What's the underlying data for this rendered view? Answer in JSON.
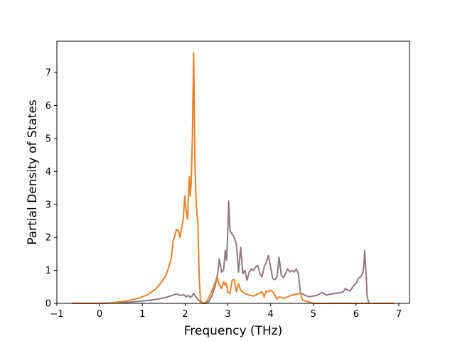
{
  "chart_data": {
    "type": "line",
    "title": "",
    "xlabel": "Frequency (THz)",
    "ylabel": "Partial Density of States",
    "xlim": [
      -1.0,
      7.25
    ],
    "ylim": [
      0,
      7.95
    ],
    "xticks": [
      -1,
      0,
      1,
      2,
      3,
      4,
      5,
      6,
      7
    ],
    "yticks": [
      0,
      1,
      2,
      3,
      4,
      5,
      6,
      7
    ],
    "grid": false,
    "legend": "none",
    "series": [
      {
        "color": "#8c7b7f",
        "x": [
          -0.65,
          0.0,
          0.5,
          0.8,
          1.0,
          1.2,
          1.4,
          1.55,
          1.65,
          1.75,
          1.82,
          1.9,
          1.97,
          2.02,
          2.08,
          2.12,
          2.16,
          2.2,
          2.25,
          2.3,
          2.36,
          2.42,
          2.48,
          2.55,
          2.62,
          2.7,
          2.76,
          2.8,
          2.85,
          2.9,
          2.94,
          2.97,
          3.0,
          3.02,
          3.05,
          3.1,
          3.15,
          3.2,
          3.25,
          3.3,
          3.35,
          3.4,
          3.45,
          3.5,
          3.55,
          3.6,
          3.65,
          3.7,
          3.75,
          3.8,
          3.85,
          3.9,
          3.95,
          4.0,
          4.05,
          4.1,
          4.15,
          4.2,
          4.25,
          4.3,
          4.35,
          4.4,
          4.45,
          4.5,
          4.55,
          4.6,
          4.65,
          4.7,
          4.75,
          4.8,
          4.9,
          5.0,
          5.1,
          5.2,
          5.3,
          5.4,
          5.5,
          5.6,
          5.7,
          5.75,
          5.8,
          5.85,
          5.9,
          5.95,
          6.0,
          6.05,
          6.1,
          6.15,
          6.18,
          6.2,
          6.23,
          6.26,
          6.3,
          6.9
        ],
        "values": [
          0,
          0,
          0.02,
          0.05,
          0.07,
          0.1,
          0.14,
          0.18,
          0.22,
          0.27,
          0.28,
          0.24,
          0.26,
          0.2,
          0.24,
          0.18,
          0.22,
          0.3,
          0.2,
          0.12,
          0.05,
          0.01,
          0.0,
          0.05,
          0.2,
          0.5,
          0.9,
          1.35,
          0.95,
          1.0,
          1.6,
          1.3,
          2.2,
          3.1,
          2.2,
          2.1,
          2.0,
          1.8,
          0.95,
          1.7,
          0.9,
          1.0,
          0.7,
          0.95,
          1.05,
          1.0,
          1.1,
          1.15,
          0.9,
          0.8,
          1.1,
          1.25,
          1.45,
          1.1,
          0.75,
          0.72,
          0.8,
          1.4,
          0.85,
          0.78,
          0.9,
          1.05,
          0.95,
          1.0,
          0.95,
          1.05,
          0.9,
          0.3,
          0.28,
          0.25,
          0.2,
          0.22,
          0.25,
          0.33,
          0.25,
          0.28,
          0.3,
          0.32,
          0.35,
          0.45,
          0.4,
          0.38,
          0.45,
          0.55,
          0.6,
          0.75,
          0.8,
          0.9,
          1.1,
          1.6,
          1.0,
          0.2,
          0.0,
          0.0
        ]
      },
      {
        "color": "#e8822a",
        "x": [
          -0.65,
          0.0,
          0.3,
          0.6,
          0.9,
          1.1,
          1.3,
          1.45,
          1.55,
          1.62,
          1.68,
          1.72,
          1.75,
          1.8,
          1.85,
          1.88,
          1.92,
          1.96,
          1.99,
          2.02,
          2.06,
          2.08,
          2.1,
          2.12,
          2.14,
          2.17,
          2.2,
          2.23,
          2.26,
          2.3,
          2.33,
          2.36,
          2.4,
          2.45,
          2.5,
          2.55,
          2.6,
          2.65,
          2.7,
          2.75,
          2.8,
          2.85,
          2.9,
          2.93,
          2.96,
          3.0,
          3.05,
          3.1,
          3.15,
          3.2,
          3.25,
          3.3,
          3.35,
          3.4,
          3.5,
          3.6,
          3.7,
          3.8,
          3.85,
          3.9,
          3.95,
          4.0,
          4.05,
          4.1,
          4.15,
          4.2,
          4.3,
          4.4,
          4.5,
          4.6,
          4.7,
          4.75,
          5.0,
          6.9
        ],
        "values": [
          0,
          0,
          0.02,
          0.07,
          0.15,
          0.25,
          0.42,
          0.65,
          0.85,
          1.1,
          1.4,
          1.9,
          2.0,
          2.25,
          2.2,
          2.0,
          2.3,
          2.6,
          3.25,
          2.85,
          2.55,
          3.35,
          3.85,
          3.25,
          3.6,
          5.0,
          7.6,
          4.2,
          3.0,
          2.4,
          0.8,
          0.1,
          0.0,
          0.0,
          0.05,
          0.15,
          0.3,
          0.45,
          0.62,
          0.8,
          0.55,
          0.45,
          0.65,
          0.55,
          0.62,
          0.35,
          0.3,
          0.7,
          0.72,
          0.35,
          0.6,
          0.4,
          0.35,
          0.3,
          0.25,
          0.22,
          0.28,
          0.35,
          0.2,
          0.38,
          0.35,
          0.4,
          0.35,
          0.25,
          0.12,
          0.2,
          0.15,
          0.2,
          0.25,
          0.28,
          0.3,
          0.1,
          0.0,
          0.0
        ]
      }
    ]
  }
}
